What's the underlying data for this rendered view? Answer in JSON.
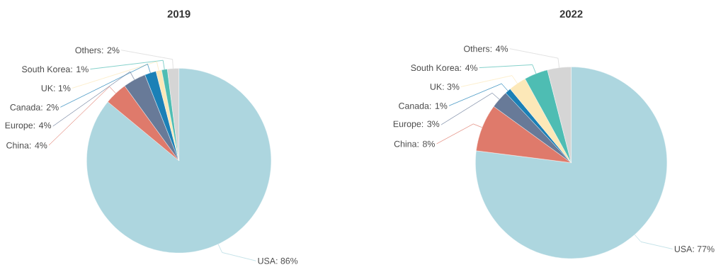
{
  "chart_data": [
    {
      "type": "pie",
      "title": "2019",
      "categories": [
        "USA: 86%",
        "China: 4%",
        "Europe: 4%",
        "Canada: 2%",
        "UK: 1%",
        "South Korea: 1%",
        "Others: 2%"
      ],
      "values": [
        86,
        4,
        4,
        2,
        1,
        1,
        2
      ],
      "colors": [
        "#add6df",
        "#df7a6b",
        "#687a98",
        "#1b80b6",
        "#fce8b8",
        "#4ebdb3",
        "#d5d5d5"
      ]
    },
    {
      "type": "pie",
      "title": "2022",
      "categories": [
        "USA: 77%",
        "China: 8%",
        "Europe: 3%",
        "Canada: 1%",
        "UK: 3%",
        "South Korea: 4%",
        "Others: 4%"
      ],
      "values": [
        77,
        8,
        3,
        1,
        3,
        4,
        4
      ],
      "colors": [
        "#add6df",
        "#df7a6b",
        "#687a98",
        "#1b80b6",
        "#fce8b8",
        "#4ebdb3",
        "#d5d5d5"
      ]
    }
  ]
}
